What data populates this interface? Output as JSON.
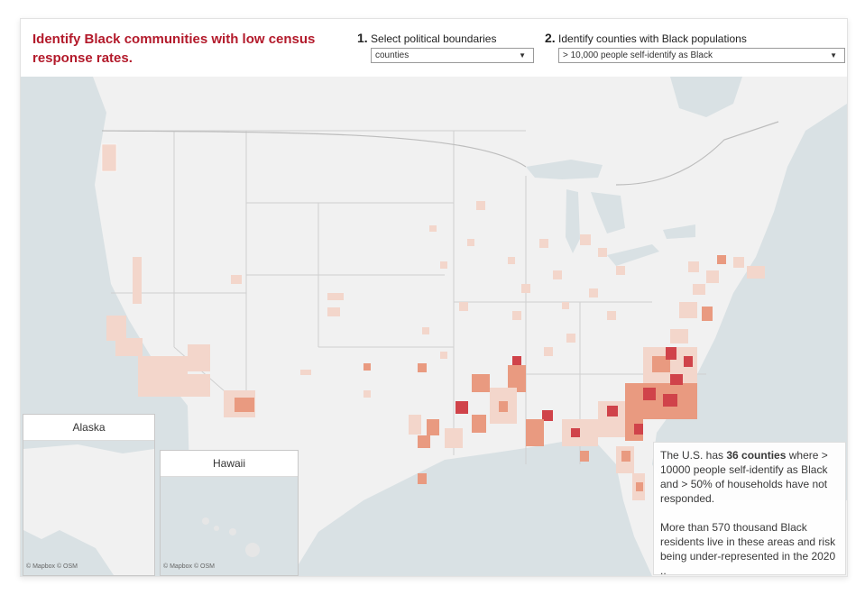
{
  "title": "Identify Black communities with low census response rates.",
  "controls": {
    "step1": {
      "number": "1.",
      "label": "Select political boundaries",
      "value": "counties"
    },
    "step2": {
      "number": "2.",
      "label": "Identify counties with Black populations",
      "value": "> 10,000 people self-identify as Black"
    }
  },
  "insets": {
    "alaska": "Alaska",
    "hawaii": "Hawaii"
  },
  "attribution": {
    "main": "© Mapbox  © OSM",
    "hawaii": "© Mapbox  © OSM"
  },
  "info": {
    "p1_pre": "The U.S. has ",
    "p1_bold": "36 counties",
    "p1_post": " where > 10000 people self-identify as Black and > 50% of households have not responded.",
    "p2": "More than 570 thousand Black residents live in these areas and risk being under-represented in the 2020 .."
  },
  "colors": {
    "headline": "#b31a2b",
    "land": "#f1f1f1",
    "water": "#d9e1e4",
    "low": "#f3d6cb",
    "mid": "#e99a80",
    "high": "#d0434a"
  },
  "icons": {
    "dropdown": "caret-down-icon"
  }
}
